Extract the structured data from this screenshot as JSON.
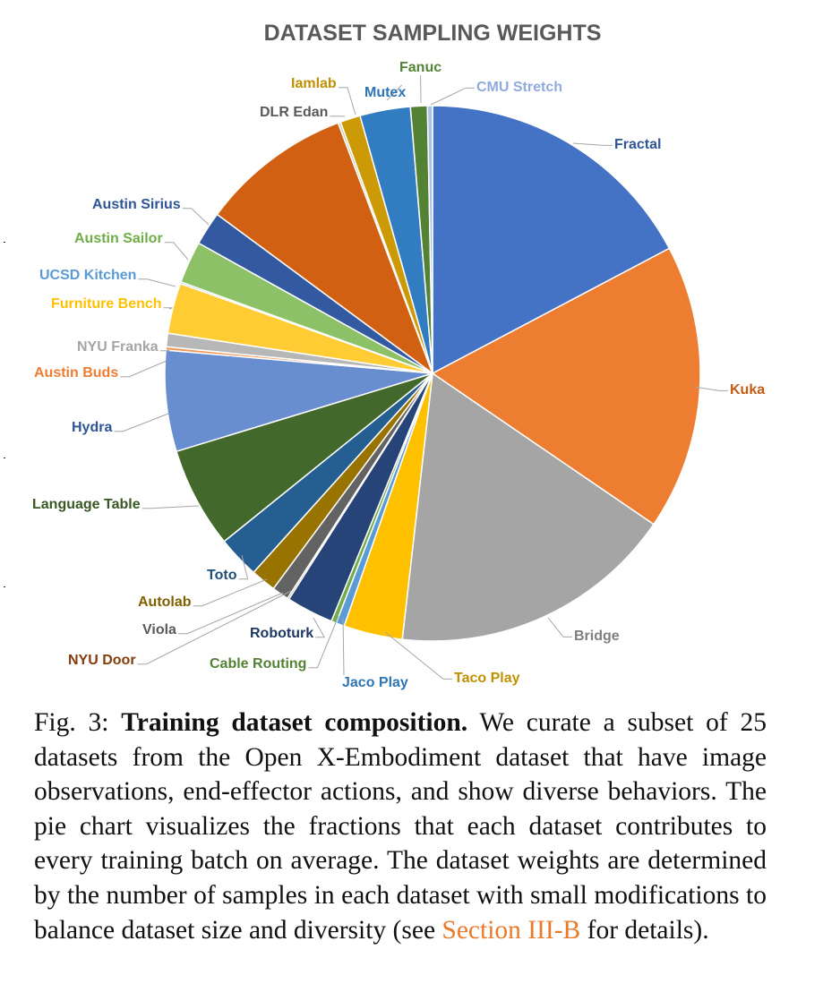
{
  "chart_data": {
    "type": "pie",
    "title": "DATASET SAMPLING WEIGHTS",
    "start_angle_deg": 0,
    "direction": "clockwise",
    "slices": [
      {
        "label": "Fractal",
        "value": 17.0,
        "color": "#4472c4",
        "label_color": "#2f5597"
      },
      {
        "label": "Kuka",
        "value": 17.0,
        "color": "#ed7d31",
        "label_color": "#c55a11"
      },
      {
        "label": "Bridge",
        "value": 17.0,
        "color": "#a5a5a5",
        "label_color": "#7f7f7f"
      },
      {
        "label": "Taco Play",
        "value": 3.5,
        "color": "#ffc000",
        "label_color": "#bf9000"
      },
      {
        "label": "Jaco Play",
        "value": 0.5,
        "color": "#5b9bd5",
        "label_color": "#2e75b6"
      },
      {
        "label": "Cable Routing",
        "value": 0.3,
        "color": "#70ad47",
        "label_color": "#548235"
      },
      {
        "label": "Roboturk",
        "value": 2.8,
        "color": "#264478",
        "label_color": "#1f3864"
      },
      {
        "label": "NYU Door",
        "value": 0.1,
        "color": "#9e480e",
        "label_color": "#843c0c"
      },
      {
        "label": "Viola",
        "value": 1.0,
        "color": "#636363",
        "label_color": "#595959"
      },
      {
        "label": "Autolab",
        "value": 1.5,
        "color": "#997300",
        "label_color": "#7f6000"
      },
      {
        "label": "Toto",
        "value": 2.5,
        "color": "#255e91",
        "label_color": "#1f4e79"
      },
      {
        "label": "Language Table",
        "value": 6.0,
        "color": "#43682b",
        "label_color": "#385723"
      },
      {
        "label": "Hydra",
        "value": 6.0,
        "color": "#698ed0",
        "label_color": "#2f5597"
      },
      {
        "label": "Austin Buds",
        "value": 0.2,
        "color": "#f1975a",
        "label_color": "#ed7d31"
      },
      {
        "label": "NYU Franka",
        "value": 0.8,
        "color": "#b7b7b7",
        "label_color": "#a5a5a5"
      },
      {
        "label": "Furniture Bench",
        "value": 3.0,
        "color": "#ffcd33",
        "label_color": "#ffc000"
      },
      {
        "label": "UCSD Kitchen",
        "value": 0.1,
        "color": "#7cafdd",
        "label_color": "#5b9bd5"
      },
      {
        "label": "Austin Sailor",
        "value": 2.5,
        "color": "#8cc168",
        "label_color": "#70ad47"
      },
      {
        "label": "Austin Sirius",
        "value": 2.0,
        "color": "#335aa1",
        "label_color": "#2f5597"
      },
      {
        "label": "DLR Edan",
        "value": 9.0,
        "color": "#d26012",
        "label_color": "#595959"
      },
      {
        "label": "Iamlab",
        "value": 0.15,
        "color": "#ccccb0",
        "label_color": "#bf9000"
      },
      {
        "label": "Mutex",
        "value": 1.2,
        "color": "#cc9a06",
        "label_color": "#2e75b6"
      },
      {
        "label": "Fanuc",
        "value": 3.0,
        "color": "#327dc2",
        "label_color": "#548235"
      },
      {
        "label": "CMU Stretch",
        "value": 1.0,
        "color": "#548235",
        "label_color": "#8faadc"
      },
      {
        "label": "",
        "value": 0.3,
        "color": "#a9c1e6"
      }
    ]
  },
  "caption": {
    "fig_num": "Fig. 3:",
    "fig_title": "Training dataset composition.",
    "body": " We curate a subset of 25 datasets from the Open X-Embodiment dataset that have image observations, end-effector actions, and show diverse behaviors. The pie chart visualizes the fractions that each dataset contributes to every training batch on average. The dataset weights are determined by the number of samples in each dataset with small modifications to balance dataset size and diversity (see ",
    "link_text": "Section III-B",
    "body_end": " for details)."
  }
}
